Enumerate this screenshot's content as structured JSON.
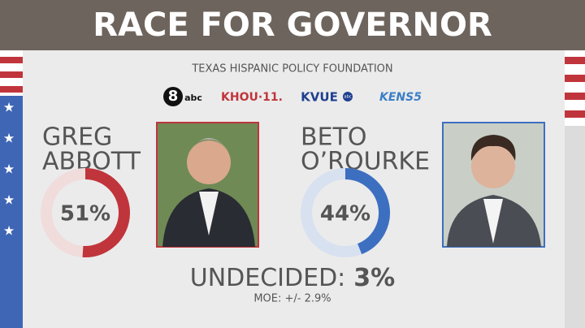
{
  "header": {
    "title": "RACE FOR GOVERNOR",
    "source": "TEXAS HISPANIC POLICY FOUNDATION",
    "logos": [
      "8",
      "abc",
      "KHOU·11.",
      "KVUE",
      "abc",
      "KENS5"
    ]
  },
  "candidates": [
    {
      "name": [
        "GREG",
        "ABBOTT"
      ],
      "value": 51,
      "value_label": "51%",
      "color": "#c0353b",
      "track": "#f1dcdc"
    },
    {
      "name": [
        "BETO",
        "O’ROURKE"
      ],
      "value": 44,
      "value_label": "44%",
      "color": "#3d6fc0",
      "track": "#d8e1f0"
    }
  ],
  "undecided": {
    "label": "UNDECIDED:",
    "value_label": "3%"
  },
  "moe": "MOE: +/- 2.9%"
}
